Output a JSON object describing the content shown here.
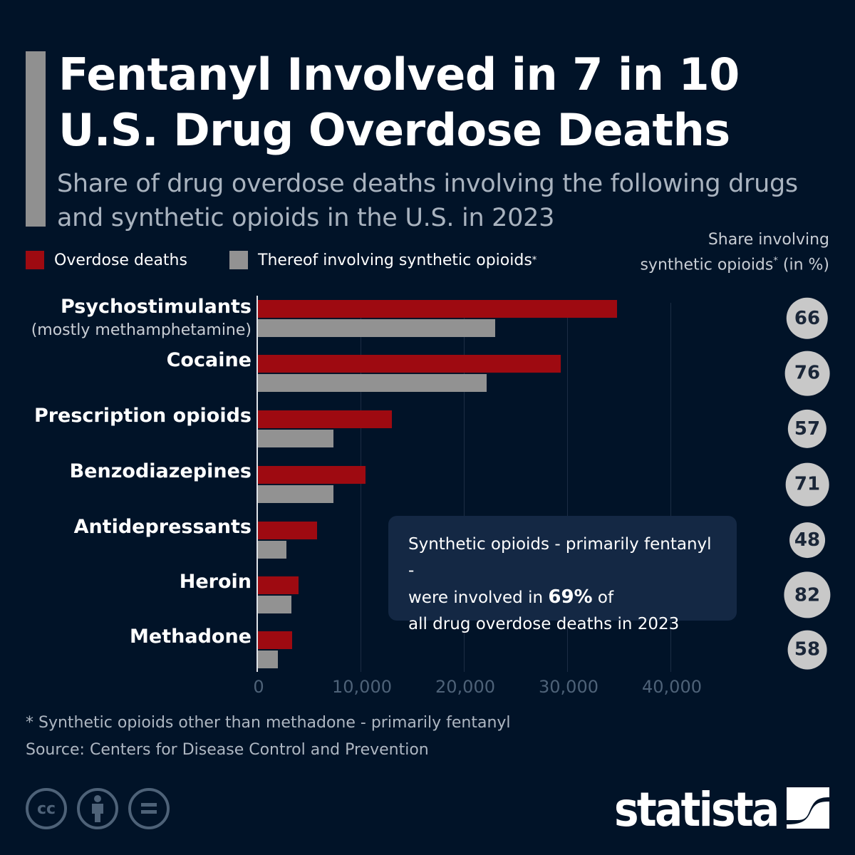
{
  "title": "Fentanyl Involved in 7 in 10 U.S. Drug Overdose Deaths",
  "subtitle": "Share of drug overdose deaths involving the following drugs and synthetic opioids in the U.S. in 2023",
  "share_header": {
    "line1": "Share involving",
    "line2": "synthetic opioids",
    "sup": "*",
    "line2_suffix": " (in %)"
  },
  "note": {
    "text1": "Synthetic opioids - primarily fentanyl -",
    "text2": "were involved in ",
    "highlight": "69%",
    "text3": " of",
    "text4": "all drug overdose deaths in 2023"
  },
  "footnote": "* Synthetic opioids other than methadone - primarily fentanyl",
  "source": "Source: Centers for Disease Control and Prevention",
  "license_icons": [
    "cc-icon",
    "by-icon",
    "nd-icon"
  ],
  "logo": "statista",
  "colors": {
    "background": "#011328",
    "overdose": "#9e0a11",
    "synthetic": "#929292",
    "circle": "#c8c8c8"
  },
  "chart_data": {
    "type": "bar",
    "orientation": "horizontal",
    "categories": [
      "Psychostimulants",
      "Cocaine",
      "Prescription opioids",
      "Benzodiazepines",
      "Antidepressants",
      "Heroin",
      "Methadone"
    ],
    "category_sublabels": [
      "(mostly methamphetamine)",
      "",
      "",
      "",
      "",
      "",
      ""
    ],
    "series": [
      {
        "name": "Overdose deaths",
        "color": "#9e0a11",
        "values": [
          34800,
          29400,
          13000,
          10500,
          5800,
          4000,
          3400
        ]
      },
      {
        "name": "Thereof involving synthetic opioids",
        "name_sup": "*",
        "color": "#929292",
        "values": [
          23000,
          22200,
          7400,
          7400,
          2800,
          3300,
          2000
        ]
      }
    ],
    "share_percent": [
      66,
      76,
      57,
      71,
      48,
      82,
      58
    ],
    "xlim": [
      0,
      45000
    ],
    "xticks": [
      0,
      10000,
      20000,
      30000,
      40000
    ],
    "xtick_labels": [
      "0",
      "10,000",
      "20,000",
      "30,000",
      "40,000"
    ],
    "grid": true,
    "legend": "top-left"
  }
}
